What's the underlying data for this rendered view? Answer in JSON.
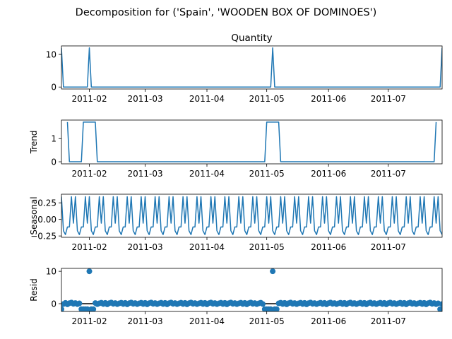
{
  "figure": {
    "suptitle": "Decomposition for ('Spain', 'WOODEN BOX OF DOMINOES')",
    "line_color": "#1f77b4"
  },
  "chart_data": [
    {
      "type": "line",
      "title": "Quantity",
      "ylabel": "",
      "x_range": [
        "2011-01-18",
        "2011-07-28"
      ],
      "ylim": [
        -0.6,
        12.6
      ],
      "yticks": [
        "0",
        "10"
      ],
      "xticks": [
        "2011-02",
        "2011-03",
        "2011-04",
        "2011-05",
        "2011-06",
        "2011-07"
      ],
      "x": [
        "2011-01-18",
        "2011-01-19",
        "2011-01-31",
        "2011-02-01",
        "2011-02-02",
        "2011-05-03",
        "2011-05-04",
        "2011-05-05",
        "2011-07-27",
        "2011-07-28"
      ],
      "values": [
        12,
        0,
        0,
        12,
        0,
        0,
        12,
        0,
        0,
        12
      ]
    },
    {
      "type": "line",
      "title": "",
      "ylabel": "Trend",
      "x_range": [
        "2011-01-18",
        "2011-07-28"
      ],
      "ylim": [
        -0.09,
        1.8
      ],
      "yticks": [
        "0",
        "1"
      ],
      "xticks": [
        "2011-02",
        "2011-03",
        "2011-04",
        "2011-05",
        "2011-06",
        "2011-07"
      ],
      "x": [
        "2011-01-21",
        "2011-01-22",
        "2011-01-28",
        "2011-01-29",
        "2011-02-04",
        "2011-02-05",
        "2011-04-30",
        "2011-05-01",
        "2011-05-07",
        "2011-05-08",
        "2011-07-24",
        "2011-07-25"
      ],
      "values": [
        1.714,
        0,
        0,
        1.714,
        1.714,
        0,
        0,
        1.714,
        1.714,
        0,
        0,
        1.714
      ]
    },
    {
      "type": "line",
      "title": "",
      "ylabel": "Seasonal",
      "x_range": [
        "2011-01-18",
        "2011-07-28"
      ],
      "ylim": [
        -0.27,
        0.38
      ],
      "yticks": [
        "0.25",
        "0.00",
        "−0.25"
      ],
      "ytick_values": [
        0.25,
        0,
        -0.25
      ],
      "xticks": [
        "2011-02",
        "2011-03",
        "2011-04",
        "2011-05",
        "2011-06",
        "2011-07"
      ],
      "period_days": 7,
      "cycle": [
        0.343,
        -0.171,
        -0.229,
        -0.114,
        -0.114,
        0.343,
        -0.057
      ]
    },
    {
      "type": "scatter",
      "title": "",
      "ylabel": "Resid",
      "x_range": [
        "2011-01-18",
        "2011-07-28"
      ],
      "ylim": [
        -2.4,
        10.9
      ],
      "yticks": [
        "0",
        "10"
      ],
      "xticks": [
        "2011-02",
        "2011-03",
        "2011-04",
        "2011-05",
        "2011-06",
        "2011-07"
      ],
      "baseline": 0,
      "residual_spikes": [
        {
          "x": "2011-02-01",
          "value": 10
        },
        {
          "x": "2011-05-04",
          "value": 10
        }
      ]
    }
  ]
}
